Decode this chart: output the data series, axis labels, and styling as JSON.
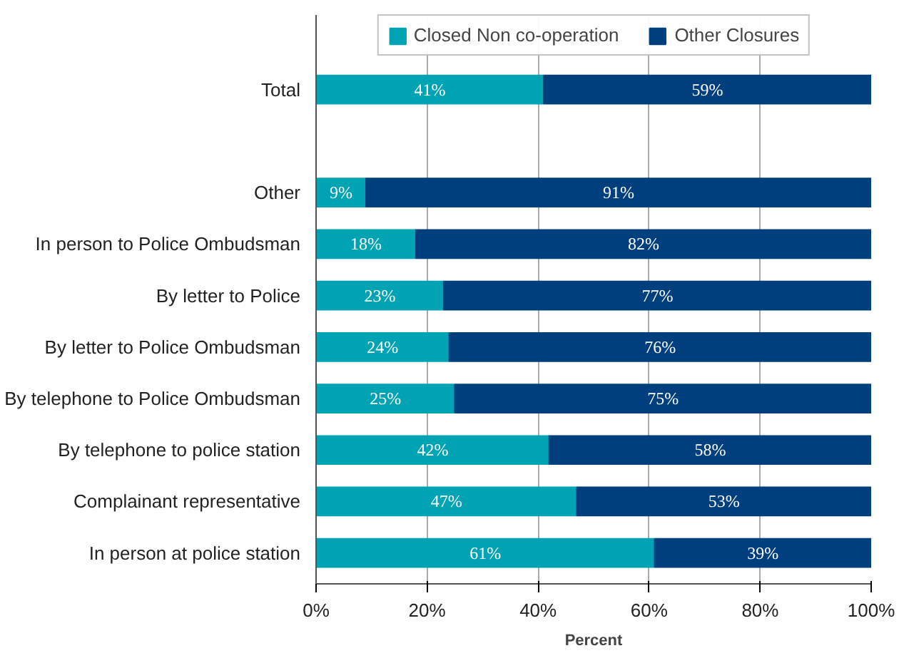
{
  "chart_data": {
    "type": "bar",
    "orientation": "horizontal",
    "stacked": true,
    "xlabel": "Percent",
    "categories": [
      "Total",
      null,
      "Other",
      "In person to Police Ombudsman",
      "By letter to Police",
      "By letter to Police Ombudsman",
      "By telephone to Police Ombudsman",
      "By telephone to police station",
      "Complainant representative",
      "In person at police station"
    ],
    "series": [
      {
        "name": "Closed Non co-operation",
        "color": "#00a3b4",
        "values": [
          41,
          null,
          9,
          18,
          23,
          24,
          25,
          42,
          47,
          61
        ],
        "value_labels": [
          "41%",
          null,
          "9%",
          "18%",
          "23%",
          "24%",
          "25%",
          "42%",
          "47%",
          "61%"
        ]
      },
      {
        "name": "Other Closures",
        "color": "#003f7d",
        "values": [
          59,
          null,
          91,
          82,
          77,
          76,
          75,
          58,
          53,
          39
        ],
        "value_labels": [
          "59%",
          null,
          "91%",
          "82%",
          "77%",
          "76%",
          "75%",
          "58%",
          "53%",
          "39%"
        ]
      }
    ],
    "xlim": [
      0,
      100
    ],
    "xticks": [
      {
        "value": 0,
        "label": "0%"
      },
      {
        "value": 20,
        "label": "20%"
      },
      {
        "value": 40,
        "label": "40%"
      },
      {
        "value": 60,
        "label": "60%"
      },
      {
        "value": 80,
        "label": "80%"
      },
      {
        "value": 100,
        "label": "100%"
      }
    ],
    "grid": "x",
    "legend": "top"
  }
}
